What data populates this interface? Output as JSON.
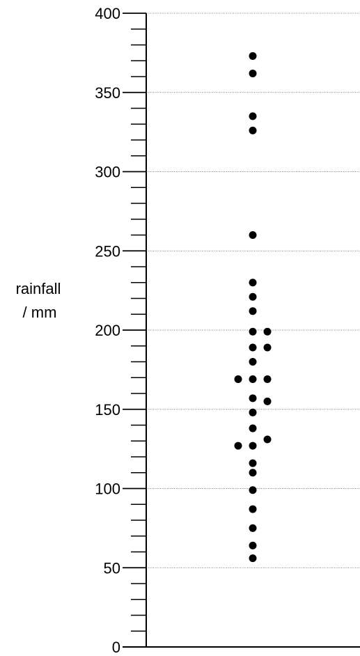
{
  "chart_data": {
    "type": "scatter",
    "title": "",
    "ylabel_lines": [
      "rainfall",
      "/ mm"
    ],
    "xlabel": "",
    "ylim": [
      0,
      400
    ],
    "major_ticks": [
      0,
      50,
      100,
      150,
      200,
      250,
      300,
      350,
      400
    ],
    "minor_tick_step": 10,
    "grid": "horizontal dotted at major ticks",
    "points": [
      {
        "col": 0,
        "y": 373
      },
      {
        "col": 0,
        "y": 362
      },
      {
        "col": 0,
        "y": 335
      },
      {
        "col": 0,
        "y": 326
      },
      {
        "col": 0,
        "y": 260
      },
      {
        "col": 0,
        "y": 230
      },
      {
        "col": 0,
        "y": 221
      },
      {
        "col": 0,
        "y": 212
      },
      {
        "col": 0,
        "y": 199
      },
      {
        "col": 1,
        "y": 199
      },
      {
        "col": 0,
        "y": 189
      },
      {
        "col": 1,
        "y": 189
      },
      {
        "col": 0,
        "y": 180
      },
      {
        "col": -1,
        "y": 169
      },
      {
        "col": 0,
        "y": 169
      },
      {
        "col": 1,
        "y": 169
      },
      {
        "col": 0,
        "y": 157
      },
      {
        "col": 1,
        "y": 155
      },
      {
        "col": 0,
        "y": 148
      },
      {
        "col": 0,
        "y": 138
      },
      {
        "col": 1,
        "y": 131
      },
      {
        "col": -1,
        "y": 127
      },
      {
        "col": 0,
        "y": 127
      },
      {
        "col": 0,
        "y": 116
      },
      {
        "col": 0,
        "y": 110
      },
      {
        "col": 0,
        "y": 99
      },
      {
        "col": 0,
        "y": 87
      },
      {
        "col": 0,
        "y": 75
      },
      {
        "col": 0,
        "y": 64
      },
      {
        "col": 0,
        "y": 56
      }
    ]
  }
}
